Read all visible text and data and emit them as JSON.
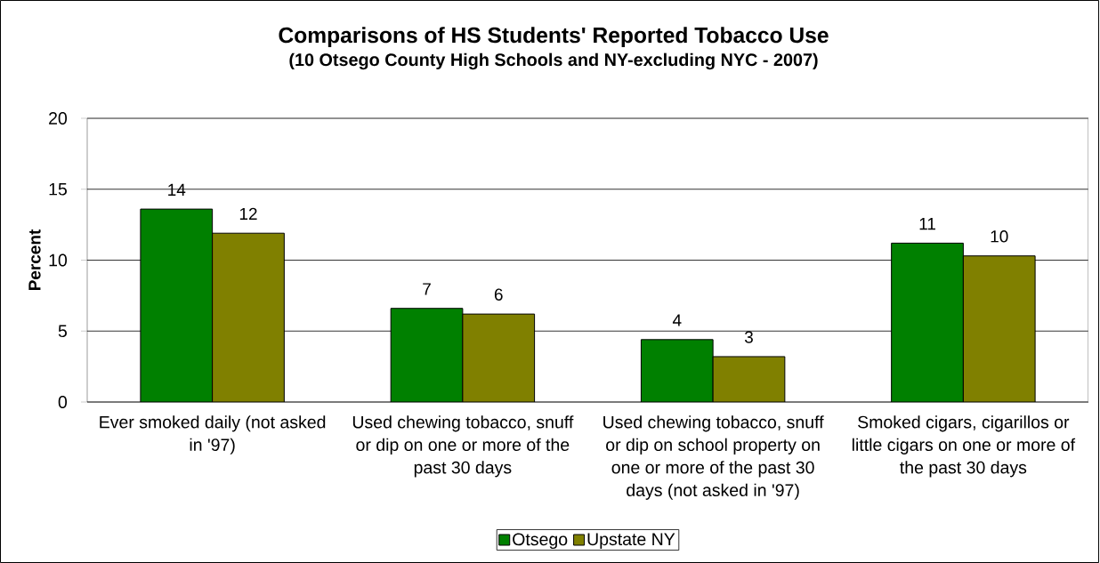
{
  "chart_data": {
    "type": "bar",
    "title": "Comparisons of HS Students' Reported Tobacco Use",
    "subtitle": "(10 Otsego County High Schools and NY-excluding NYC - 2007)",
    "ylabel": "Percent",
    "categories": [
      "Ever smoked daily (not asked in '97)",
      "Used chewing tobacco, snuff or dip on one or more of the past 30 days",
      "Used chewing tobacco, snuff or dip on school property on one or more of the past 30 days (not asked in '97)",
      "Smoked cigars, cigarillos or little cigars on one or more of the past 30 days"
    ],
    "series": [
      {
        "name": "Otsego",
        "color": "#008000",
        "values": [
          13.6,
          6.6,
          4.4,
          11.2
        ],
        "value_labels": [
          "14",
          "7",
          "4",
          "11"
        ]
      },
      {
        "name": "Upstate NY",
        "color": "#808000",
        "values": [
          11.9,
          6.2,
          3.2,
          10.3
        ],
        "value_labels": [
          "12",
          "6",
          "3",
          "10"
        ]
      }
    ],
    "ylim": [
      0,
      20
    ],
    "yticks": [
      0,
      5,
      10,
      15,
      20
    ],
    "grid": "y",
    "legend": "bottom"
  }
}
